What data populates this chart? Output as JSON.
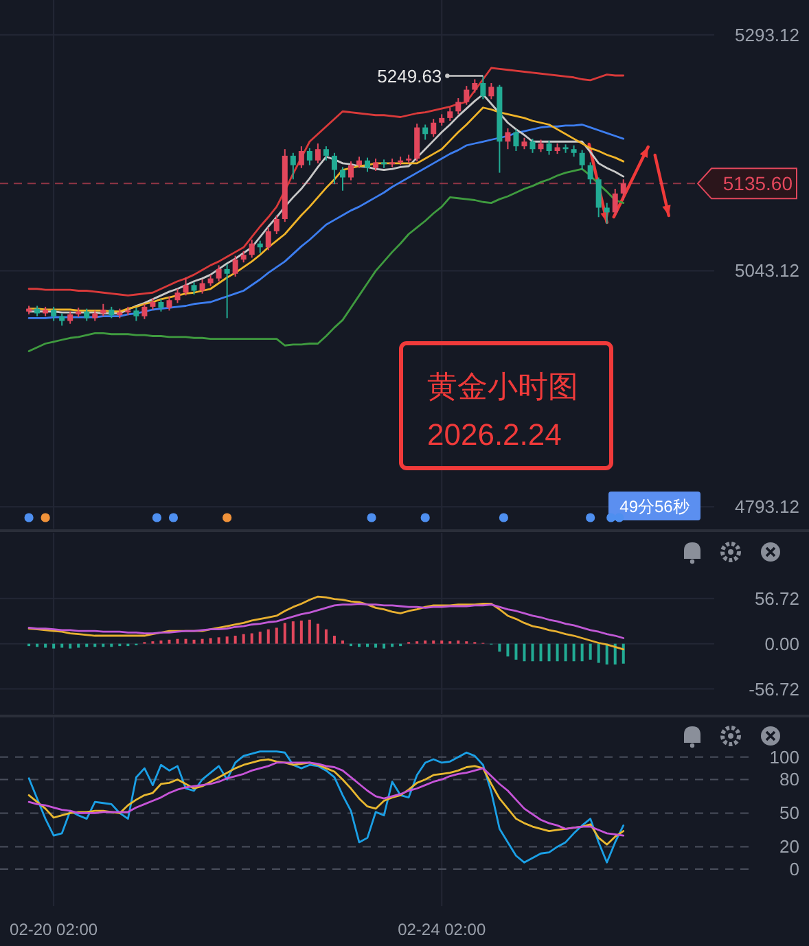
{
  "chart_data": [
    {
      "type": "candlestick",
      "title": "黄金小时图",
      "subtitle": "2026.2.24",
      "categories": [
        null,
        null,
        null,
        null,
        null,
        null,
        null,
        null,
        null,
        null,
        null,
        null,
        null,
        null,
        null,
        null,
        null,
        null,
        null,
        null,
        null,
        null,
        null,
        null,
        null,
        null,
        null,
        null,
        null,
        null,
        null,
        null,
        null,
        null,
        null,
        null,
        null,
        null,
        null,
        null,
        null,
        null,
        null,
        null,
        null,
        null,
        null,
        null,
        null,
        null,
        null,
        null,
        null,
        null,
        null,
        null,
        null,
        null,
        null,
        null,
        null,
        null,
        null,
        null,
        null,
        null,
        null,
        null,
        null,
        null,
        null,
        null,
        null
      ],
      "ohlc": [
        [
          5000,
          5006,
          4997,
          5003
        ],
        [
          5003,
          5006,
          4995,
          4998
        ],
        [
          4998,
          5005,
          4995,
          5002
        ],
        [
          5002,
          5005,
          4990,
          4995
        ],
        [
          4995,
          4998,
          4985,
          4990
        ],
        [
          4990,
          5000,
          4987,
          4997
        ],
        [
          4997,
          5004,
          4994,
          5000
        ],
        [
          5000,
          5003,
          4990,
          4993
        ],
        [
          4993,
          5001,
          4990,
          4998
        ],
        [
          4998,
          5008,
          4995,
          5002
        ],
        [
          5002,
          5005,
          4993,
          4996
        ],
        [
          4996,
          5003,
          4993,
          4999
        ],
        [
          4999,
          5005,
          4996,
          5001
        ],
        [
          5001,
          5004,
          4990,
          4995
        ],
        [
          4995,
          5008,
          4992,
          5005
        ],
        [
          5005,
          5014,
          5002,
          5010
        ],
        [
          5010,
          5013,
          5000,
          5004
        ],
        [
          5004,
          5016,
          5001,
          5012
        ],
        [
          5012,
          5024,
          5009,
          5020
        ],
        [
          5020,
          5036,
          5017,
          5028
        ],
        [
          5028,
          5031,
          5018,
          5022
        ],
        [
          5022,
          5034,
          5019,
          5030
        ],
        [
          5030,
          5039,
          5027,
          5035
        ],
        [
          5035,
          5049,
          5032,
          5045
        ],
        [
          5045,
          5050,
          4993,
          5040
        ],
        [
          5040,
          5059,
          5037,
          5055
        ],
        [
          5055,
          5064,
          5052,
          5060
        ],
        [
          5060,
          5076,
          5057,
          5072
        ],
        [
          5072,
          5075,
          5062,
          5068
        ],
        [
          5068,
          5089,
          5065,
          5085
        ],
        [
          5085,
          5102,
          5082,
          5098
        ],
        [
          5098,
          5172,
          5095,
          5165
        ],
        [
          5165,
          5168,
          5140,
          5155
        ],
        [
          5155,
          5175,
          5152,
          5170
        ],
        [
          5170,
          5173,
          5155,
          5160
        ],
        [
          5160,
          5178,
          5157,
          5172
        ],
        [
          5172,
          5175,
          5160,
          5165
        ],
        [
          5165,
          5168,
          5135,
          5150
        ],
        [
          5150,
          5153,
          5128,
          5142
        ],
        [
          5142,
          5159,
          5139,
          5155
        ],
        [
          5155,
          5164,
          5152,
          5160
        ],
        [
          5160,
          5163,
          5148,
          5152
        ],
        [
          5152,
          5162,
          5149,
          5158
        ],
        [
          5158,
          5161,
          5152,
          5156
        ],
        [
          5156,
          5162,
          5153,
          5158
        ],
        [
          5158,
          5164,
          5155,
          5160
        ],
        [
          5160,
          5166,
          5157,
          5162
        ],
        [
          5162,
          5199,
          5159,
          5195
        ],
        [
          5195,
          5198,
          5182,
          5188
        ],
        [
          5188,
          5204,
          5185,
          5200
        ],
        [
          5200,
          5209,
          5197,
          5205
        ],
        [
          5205,
          5216,
          5202,
          5212
        ],
        [
          5212,
          5226,
          5209,
          5222
        ],
        [
          5222,
          5239,
          5219,
          5235
        ],
        [
          5235,
          5246,
          5232,
          5242
        ],
        [
          5242,
          5249.63,
          5225,
          5228
        ],
        [
          5228,
          5242,
          5225,
          5238
        ],
        [
          5238,
          5240,
          5147,
          5180
        ],
        [
          5180,
          5194,
          5172,
          5190
        ],
        [
          5190,
          5193,
          5170,
          5175
        ],
        [
          5175,
          5184,
          5172,
          5180
        ],
        [
          5180,
          5183,
          5168,
          5172
        ],
        [
          5172,
          5182,
          5169,
          5178
        ],
        [
          5178,
          5181,
          5166,
          5170
        ],
        [
          5170,
          5178,
          5167,
          5174
        ],
        [
          5174,
          5177,
          5168,
          5172
        ],
        [
          5172,
          5176,
          5164,
          5168
        ],
        [
          5168,
          5171,
          5150,
          5155
        ],
        [
          5155,
          5158,
          5135,
          5140
        ],
        [
          5140,
          5142,
          5100,
          5110
        ],
        [
          5110,
          5115,
          5093,
          5105
        ],
        [
          5105,
          5130,
          5102,
          5125
        ],
        [
          5125,
          5140,
          5118,
          5135.6
        ]
      ],
      "colors": [
        "#e2475c",
        "#22ab94",
        "#e2475c",
        "#22ab94",
        "#22ab94",
        "#e2475c",
        "#e2475c",
        "#22ab94",
        "#e2475c",
        "#e2475c",
        "#22ab94",
        "#e2475c",
        "#e2475c",
        "#22ab94",
        "#e2475c",
        "#e2475c",
        "#22ab94",
        "#e2475c",
        "#e2475c",
        "#e2475c",
        "#22ab94",
        "#e2475c",
        "#e2475c",
        "#e2475c",
        "#22ab94",
        "#e2475c",
        "#e2475c",
        "#e2475c",
        "#22ab94",
        "#e2475c",
        "#e2475c",
        "#e2475c",
        "#22ab94",
        "#e2475c",
        "#22ab94",
        "#e2475c",
        "#22ab94",
        "#22ab94",
        "#22ab94",
        "#e2475c",
        "#e2475c",
        "#22ab94",
        "#e2475c",
        "#22ab94",
        "#e2475c",
        "#e2475c",
        "#e2475c",
        "#e2475c",
        "#22ab94",
        "#e2475c",
        "#e2475c",
        "#e2475c",
        "#e2475c",
        "#e2475c",
        "#e2475c",
        "#22ab94",
        "#e2475c",
        "#22ab94",
        "#e2475c",
        "#22ab94",
        "#e2475c",
        "#22ab94",
        "#e2475c",
        "#22ab94",
        "#e2475c",
        "#22ab94",
        "#22ab94",
        "#22ab94",
        "#22ab94",
        "#22ab94",
        "#22ab94",
        "#e2475c",
        "#e2475c"
      ],
      "series": [
        {
          "type": "line",
          "color": "#d93a3a",
          "values": [
            5024,
            5024,
            5023,
            5023,
            5023,
            5023,
            5022,
            5022,
            5021,
            5020,
            5019,
            5018,
            5017,
            5018,
            5019,
            5020,
            5024,
            5028,
            5032,
            5035,
            5039,
            5044,
            5049,
            5053,
            5058,
            5063,
            5068,
            5079,
            5090,
            5100,
            5111,
            5128,
            5146,
            5163,
            5180,
            5188,
            5196,
            5204,
            5212,
            5211,
            5210,
            5209,
            5208,
            5208,
            5207,
            5206,
            5208,
            5210,
            5211,
            5213,
            5215,
            5217,
            5220,
            5222,
            5234,
            5246,
            5258,
            5257,
            5256,
            5255,
            5254,
            5253,
            5252,
            5251,
            5250,
            5249,
            5248,
            5246,
            5245,
            5248,
            5251,
            5250,
            5250
          ]
        },
        {
          "type": "line",
          "color": "#3d7ef0",
          "values": [
            4993,
            4993,
            4993,
            4994,
            4994,
            4994,
            4994,
            4994,
            4994,
            4995,
            4995,
            4995,
            4997,
            4998,
            5000,
            5002,
            5003,
            5004,
            5005,
            5006,
            5008,
            5009,
            5010,
            5013,
            5016,
            5019,
            5022,
            5028,
            5034,
            5041,
            5047,
            5053,
            5061,
            5069,
            5076,
            5084,
            5092,
            5097,
            5102,
            5107,
            5111,
            5116,
            5121,
            5126,
            5132,
            5137,
            5142,
            5147,
            5152,
            5157,
            5162,
            5167,
            5171,
            5176,
            5178,
            5180,
            5182,
            5184,
            5186,
            5189,
            5191,
            5193,
            5195,
            5196,
            5196,
            5197,
            5197,
            5198,
            5195,
            5192,
            5189,
            5186,
            5183
          ]
        },
        {
          "type": "line",
          "color": "#3f9b3f",
          "values": [
            4958,
            4962,
            4966,
            4968,
            4970,
            4972,
            4973,
            4975,
            4977,
            4977,
            4976,
            4976,
            4976,
            4975,
            4975,
            4974,
            4974,
            4973,
            4973,
            4973,
            4972,
            4972,
            4971,
            4971,
            4971,
            4971,
            4971,
            4971,
            4971,
            4971,
            4971,
            4964,
            4965,
            4965,
            4966,
            4966,
            4974,
            4983,
            4991,
            5004,
            5017,
            5030,
            5043,
            5053,
            5063,
            5072,
            5082,
            5089,
            5096,
            5104,
            5111,
            5121,
            5120,
            5119,
            5118,
            5116,
            5115,
            5119,
            5122,
            5126,
            5130,
            5133,
            5137,
            5140,
            5144,
            5147,
            5149,
            5151,
            5144,
            5135,
            5127,
            5118,
            5115
          ]
        },
        {
          "type": "line",
          "color": "#c8c8c8",
          "values": [
            5000,
            5000,
            5000,
            5000,
            4999,
            4999,
            4999,
            4999,
            4999,
            4998,
            4998,
            4998,
            5002,
            5006,
            5009,
            5013,
            5017,
            5021,
            5024,
            5028,
            5032,
            5035,
            5039,
            5045,
            5051,
            5056,
            5062,
            5068,
            5079,
            5090,
            5100,
            5111,
            5121,
            5130,
            5141,
            5153,
            5164,
            5161,
            5157,
            5156,
            5154,
            5153,
            5151,
            5150,
            5151,
            5153,
            5154,
            5163,
            5172,
            5181,
            5190,
            5198,
            5207,
            5215,
            5223,
            5230,
            5220,
            5210,
            5200,
            5193,
            5187,
            5180,
            5180,
            5180,
            5180,
            5180,
            5180,
            5180,
            5169,
            5157,
            5152,
            5148,
            5143
          ]
        },
        {
          "type": "line",
          "color": "#f0b429",
          "values": [
            5003,
            5003,
            5002,
            5002,
            5002,
            5002,
            5001,
            5001,
            5001,
            5001,
            5000,
            5000,
            5003,
            5005,
            5008,
            5010,
            5013,
            5015,
            5017,
            5019,
            5020,
            5022,
            5024,
            5030,
            5036,
            5041,
            5047,
            5053,
            5060,
            5068,
            5075,
            5082,
            5092,
            5102,
            5111,
            5121,
            5131,
            5140,
            5150,
            5152,
            5154,
            5155,
            5157,
            5157,
            5157,
            5157,
            5157,
            5157,
            5162,
            5167,
            5172,
            5181,
            5190,
            5198,
            5207,
            5216,
            5214,
            5211,
            5209,
            5207,
            5205,
            5202,
            5200,
            5198,
            5193,
            5188,
            5183,
            5178,
            5173,
            5170,
            5166,
            5163,
            5159
          ]
        }
      ],
      "ylim": [
        4770,
        5330
      ],
      "yticks": [
        4793.12,
        5043.12,
        5293.12
      ],
      "ref_lines": [
        {
          "axis": "y",
          "value": 5135.6,
          "label": "5135.60",
          "color": "#e2475c",
          "line_style": "dashed"
        }
      ],
      "annotations": [
        "5249.63",
        "49分56秒"
      ],
      "grid": true,
      "tick_labels": "y"
    },
    {
      "type": "bar",
      "categories": [
        null,
        null,
        null,
        null,
        null,
        null,
        null,
        null,
        null,
        null,
        null,
        null,
        null,
        null,
        null,
        null,
        null,
        null,
        null,
        null,
        null,
        null,
        null,
        null,
        null,
        null,
        null,
        null,
        null,
        null,
        null,
        null,
        null,
        null,
        null,
        null,
        null,
        null,
        null,
        null,
        null,
        null,
        null,
        null,
        null,
        null,
        null,
        null,
        null,
        null,
        null,
        null,
        null,
        null,
        null,
        null,
        null,
        null,
        null,
        null,
        null,
        null,
        null,
        null,
        null,
        null,
        null,
        null,
        null,
        null,
        null,
        null,
        null
      ],
      "series": [
        {
          "values": [
            -3,
            -4,
            -5,
            -6,
            -5,
            -6,
            -5,
            -4,
            -4,
            -4,
            -4,
            -3,
            -3,
            -2,
            2,
            3,
            4,
            5,
            6,
            6,
            5,
            6,
            7,
            8,
            9,
            10,
            12,
            13,
            15,
            18,
            20,
            26,
            28,
            29,
            30,
            25,
            18,
            10,
            4,
            -3,
            -4,
            -4,
            -5,
            -6,
            -4,
            -3,
            2,
            3,
            4,
            4,
            4,
            3,
            4,
            3,
            2,
            1,
            -1,
            -10,
            -16,
            -20,
            -22,
            -22,
            -22,
            -22,
            -22,
            -22,
            -22,
            -22,
            -20,
            -24,
            -26,
            -26,
            -25
          ],
          "colors": [
            "#22ab94",
            "#22ab94",
            "#22ab94",
            "#22ab94",
            "#22ab94",
            "#22ab94",
            "#22ab94",
            "#22ab94",
            "#22ab94",
            "#22ab94",
            "#22ab94",
            "#22ab94",
            "#22ab94",
            "#22ab94",
            "#e2475c",
            "#e2475c",
            "#e2475c",
            "#e2475c",
            "#e2475c",
            "#e2475c",
            "#e2475c",
            "#e2475c",
            "#e2475c",
            "#e2475c",
            "#e2475c",
            "#e2475c",
            "#e2475c",
            "#e2475c",
            "#e2475c",
            "#e2475c",
            "#e2475c",
            "#e2475c",
            "#e2475c",
            "#e2475c",
            "#e2475c",
            "#e2475c",
            "#e2475c",
            "#e2475c",
            "#e2475c",
            "#22ab94",
            "#22ab94",
            "#22ab94",
            "#22ab94",
            "#22ab94",
            "#22ab94",
            "#22ab94",
            "#e2475c",
            "#e2475c",
            "#e2475c",
            "#e2475c",
            "#e2475c",
            "#e2475c",
            "#e2475c",
            "#e2475c",
            "#e2475c",
            "#e2475c",
            "#22ab94",
            "#22ab94",
            "#22ab94",
            "#22ab94",
            "#22ab94",
            "#22ab94",
            "#22ab94",
            "#22ab94",
            "#22ab94",
            "#22ab94",
            "#22ab94",
            "#22ab94",
            "#22ab94",
            "#22ab94",
            "#22ab94",
            "#22ab94",
            "#22ab94"
          ]
        },
        {
          "type": "line",
          "color": "#e8b030",
          "values": [
            19,
            18,
            17,
            16,
            15,
            13,
            12,
            11,
            10,
            10,
            10,
            10,
            10,
            10,
            10,
            12,
            14,
            16,
            16,
            16,
            16,
            16,
            18,
            20,
            22,
            24,
            26,
            29,
            31,
            33,
            35,
            41,
            46,
            50,
            55,
            59,
            58,
            56,
            55,
            53,
            52,
            49,
            45,
            43,
            40,
            38,
            41,
            43,
            46,
            48,
            48,
            48,
            49,
            49,
            49,
            50,
            50,
            43,
            35,
            31,
            26,
            22,
            20,
            17,
            15,
            12,
            10,
            7,
            4,
            1,
            -1,
            -4,
            -7
          ]
        },
        {
          "type": "line",
          "color": "#c159d6",
          "values": [
            20,
            19,
            19,
            18,
            17,
            17,
            16,
            16,
            16,
            15,
            15,
            15,
            14,
            14,
            13,
            13,
            14,
            14,
            15,
            16,
            16,
            17,
            18,
            18,
            19,
            21,
            22,
            24,
            25,
            27,
            28,
            31,
            34,
            37,
            39,
            42,
            45,
            48,
            49,
            49,
            50,
            49,
            49,
            48,
            48,
            47,
            46,
            46,
            45,
            46,
            46,
            47,
            47,
            47,
            48,
            48,
            49,
            46,
            43,
            41,
            38,
            35,
            33,
            30,
            28,
            25,
            23,
            20,
            17,
            15,
            12,
            10,
            7
          ]
        }
      ],
      "ylim": [
        -88,
        139
      ],
      "yticks": [
        -56.72,
        {
          "value": 0,
          "label": "0.00"
        },
        56.72
      ],
      "grid": true,
      "tick_labels": "y"
    },
    {
      "type": "line",
      "categories": [
        null,
        null,
        null,
        "02-20 02:00",
        null,
        null,
        null,
        null,
        null,
        null,
        null,
        null,
        null,
        null,
        null,
        null,
        null,
        null,
        null,
        null,
        null,
        null,
        null,
        null,
        null,
        null,
        null,
        null,
        null,
        null,
        null,
        null,
        null,
        null,
        null,
        null,
        null,
        null,
        null,
        null,
        null,
        null,
        null,
        null,
        null,
        null,
        null,
        null,
        null,
        null,
        "02-24 02:00",
        null,
        null,
        null,
        null,
        null,
        null,
        null,
        null,
        null,
        null,
        null,
        null,
        null,
        null,
        null,
        null,
        null,
        null,
        null,
        null,
        null,
        null
      ],
      "series": [
        {
          "color": "#1ba0e6",
          "values": [
            81,
            63,
            45,
            30,
            32,
            52,
            48,
            45,
            60,
            59,
            58,
            50,
            45,
            82,
            90,
            75,
            93,
            88,
            92,
            72,
            70,
            80,
            86,
            92,
            80,
            95,
            101,
            103,
            105,
            105,
            105,
            104,
            93,
            90,
            93,
            92,
            88,
            82,
            66,
            52,
            24,
            28,
            51,
            48,
            78,
            66,
            64,
            84,
            95,
            98,
            95,
            96,
            100,
            104,
            101,
            93,
            69,
            36,
            24,
            12,
            6,
            10,
            14,
            15,
            20,
            24,
            32,
            39,
            45,
            24,
            6,
            24,
            39
          ]
        },
        {
          "color": "#e8b830",
          "values": [
            66,
            60,
            54,
            46,
            48,
            50,
            51,
            51,
            52,
            52,
            51,
            50,
            57,
            62,
            66,
            68,
            76,
            77,
            80,
            76,
            72,
            74,
            78,
            82,
            86,
            90,
            93,
            95,
            97,
            98,
            96,
            95,
            93,
            94,
            95,
            93,
            90,
            87,
            80,
            72,
            63,
            56,
            54,
            61,
            64,
            66,
            71,
            77,
            80,
            84,
            85,
            86,
            88,
            91,
            92,
            90,
            76,
            63,
            54,
            45,
            41,
            38,
            36,
            34,
            35,
            36,
            37,
            38,
            40,
            28,
            22,
            29,
            34
          ]
        },
        {
          "color": "#c654d8",
          "values": [
            60,
            58,
            57,
            55,
            53,
            52,
            50,
            50,
            50,
            51,
            51,
            51,
            51,
            55,
            58,
            61,
            64,
            68,
            71,
            73,
            74,
            75,
            76,
            78,
            81,
            83,
            85,
            88,
            90,
            92,
            95,
            95,
            95,
            95,
            95,
            94,
            92,
            91,
            88,
            82,
            76,
            70,
            65,
            63,
            65,
            67,
            70,
            72,
            75,
            78,
            80,
            83,
            85,
            86,
            88,
            90,
            83,
            76,
            70,
            62,
            54,
            49,
            44,
            41,
            39,
            36,
            37,
            38,
            38,
            35,
            32,
            31,
            30
          ]
        }
      ],
      "ylim": [
        -33,
        136
      ],
      "yticks": [
        0,
        20,
        50,
        80,
        100
      ],
      "grid": true
    }
  ]
}
